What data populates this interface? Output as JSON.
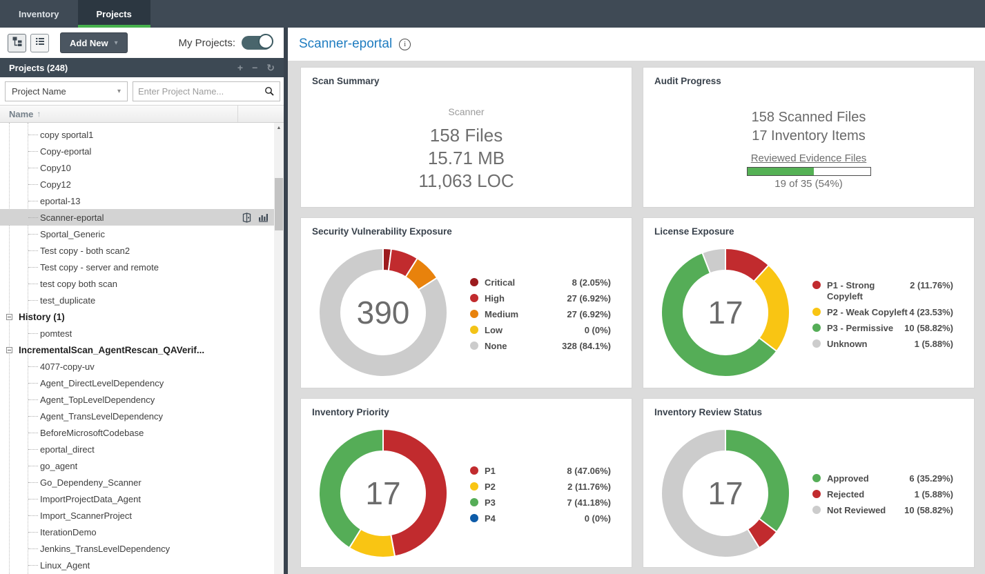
{
  "icons": {
    "plus": "+",
    "minus": "−",
    "refresh": "↻",
    "caret_down": "▾",
    "sort_up": "↑",
    "scroll_up": "▲",
    "info": "i"
  },
  "topbar": {
    "tabs": [
      {
        "label": "Inventory",
        "active": false
      },
      {
        "label": "Projects",
        "active": true
      }
    ]
  },
  "left_panel": {
    "add_new_label": "Add New",
    "my_projects_label": "My Projects:",
    "my_projects_on": true,
    "projects_header": "Projects (248)",
    "filter_selected": "Project Name",
    "search_placeholder": "Enter Project Name...",
    "name_column": "Name",
    "tree": [
      {
        "label": "copy sportal1",
        "depth": 2
      },
      {
        "label": "Copy-eportal",
        "depth": 2
      },
      {
        "label": "Copy10",
        "depth": 2
      },
      {
        "label": "Copy12",
        "depth": 2
      },
      {
        "label": "eportal-13",
        "depth": 2
      },
      {
        "label": "Scanner-eportal",
        "depth": 2,
        "selected": true,
        "icons": true
      },
      {
        "label": "Sportal_Generic",
        "depth": 2
      },
      {
        "label": "Test copy - both scan2",
        "depth": 2
      },
      {
        "label": "Test copy - server and remote",
        "depth": 2
      },
      {
        "label": "test copy both scan",
        "depth": 2
      },
      {
        "label": "test_duplicate",
        "depth": 2
      },
      {
        "label": "History (1)",
        "depth": 1,
        "bold": true,
        "expander": true
      },
      {
        "label": "pomtest",
        "depth": 2
      },
      {
        "label": "IncrementalScan_AgentRescan_QAVerif...",
        "depth": 1,
        "bold": true,
        "expander": true
      },
      {
        "label": "4077-copy-uv",
        "depth": 2
      },
      {
        "label": "Agent_DirectLevelDependency",
        "depth": 2
      },
      {
        "label": "Agent_TopLevelDependency",
        "depth": 2
      },
      {
        "label": "Agent_TransLevelDependency",
        "depth": 2
      },
      {
        "label": "BeforeMicrosoftCodebase",
        "depth": 2
      },
      {
        "label": "eportal_direct",
        "depth": 2
      },
      {
        "label": "go_agent",
        "depth": 2
      },
      {
        "label": "Go_Dependeny_Scanner",
        "depth": 2
      },
      {
        "label": "ImportProjectData_Agent",
        "depth": 2
      },
      {
        "label": "Import_ScannerProject",
        "depth": 2
      },
      {
        "label": "IterationDemo",
        "depth": 2
      },
      {
        "label": "Jenkins_TransLevelDependency",
        "depth": 2
      },
      {
        "label": "Linux_Agent",
        "depth": 2
      }
    ]
  },
  "main": {
    "title": "Scanner-eportal",
    "scan_summary": {
      "title": "Scan Summary",
      "source_label": "Scanner",
      "lines": [
        "158 Files",
        "15.71 MB",
        "11,063 LOC"
      ]
    },
    "audit_progress": {
      "title": "Audit Progress",
      "lines": [
        "158 Scanned Files",
        "17 Inventory Items"
      ],
      "bar_label": "Reviewed Evidence Files",
      "bar_pct": 54,
      "bar_caption": "19 of 35 (54%)"
    }
  },
  "chart_data": [
    {
      "type": "donut",
      "title": "Security Vulnerability Exposure",
      "center_total": "390",
      "legend_position": "right",
      "segments": [
        {
          "label": "Critical",
          "value": 8,
          "display": "8 (2.05%)",
          "color": "#9c1b1e"
        },
        {
          "label": "High",
          "value": 27,
          "display": "27 (6.92%)",
          "color": "#c12b2e"
        },
        {
          "label": "Medium",
          "value": 27,
          "display": "27 (6.92%)",
          "color": "#e8820c"
        },
        {
          "label": "Low",
          "value": 0,
          "display": "0 (0%)",
          "color": "#f3c317"
        },
        {
          "label": "None",
          "value": 328,
          "display": "328 (84.1%)",
          "color": "#cccccc"
        }
      ]
    },
    {
      "type": "donut",
      "title": "License Exposure",
      "center_total": "17",
      "legend_position": "right",
      "segments": [
        {
          "label": "P1 - Strong Copyleft",
          "value": 2,
          "display": "2 (11.76%)",
          "color": "#c12b2e"
        },
        {
          "label": "P2 - Weak Copyleft",
          "value": 4,
          "display": "4 (23.53%)",
          "color": "#f9c513"
        },
        {
          "label": "P3 - Permissive",
          "value": 10,
          "display": "10 (58.82%)",
          "color": "#55ad57"
        },
        {
          "label": "Unknown",
          "value": 1,
          "display": "1 (5.88%)",
          "color": "#cccccc"
        }
      ]
    },
    {
      "type": "donut",
      "title": "Inventory Priority",
      "center_total": "17",
      "legend_position": "right",
      "segments": [
        {
          "label": "P1",
          "value": 8,
          "display": "8 (47.06%)",
          "color": "#c12b2e"
        },
        {
          "label": "P2",
          "value": 2,
          "display": "2 (11.76%)",
          "color": "#f9c513"
        },
        {
          "label": "P3",
          "value": 7,
          "display": "7 (41.18%)",
          "color": "#55ad57"
        },
        {
          "label": "P4",
          "value": 0,
          "display": "0 (0%)",
          "color": "#0d5ba8"
        }
      ]
    },
    {
      "type": "donut",
      "title": "Inventory Review Status",
      "center_total": "17",
      "legend_position": "right",
      "segments": [
        {
          "label": "Approved",
          "value": 6,
          "display": "6 (35.29%)",
          "color": "#55ad57"
        },
        {
          "label": "Rejected",
          "value": 1,
          "display": "1 (5.88%)",
          "color": "#c12b2e"
        },
        {
          "label": "Not Reviewed",
          "value": 10,
          "display": "10 (58.82%)",
          "color": "#cccccc"
        }
      ]
    }
  ]
}
